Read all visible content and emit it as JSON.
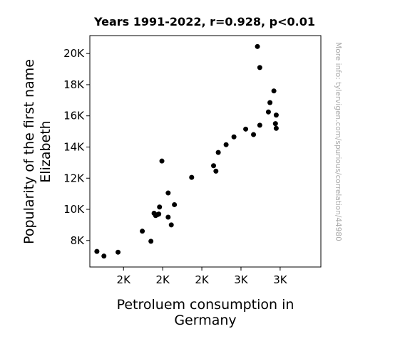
{
  "chart_data": {
    "type": "scatter",
    "title": "Years 1991-2022, r=0.928, p<0.01",
    "xlabel": [
      "Petroluem consumption in",
      "Germany"
    ],
    "ylabel": [
      "Popularity of the first name",
      "Elizabeth"
    ],
    "watermark": "More info: tylervigen.com/spurious/correlation/44980",
    "xlim": [
      1785,
      3260
    ],
    "ylim": [
      6300,
      21150
    ],
    "xticks": [
      {
        "value": 2000,
        "label": "2K"
      },
      {
        "value": 2250,
        "label": "2K"
      },
      {
        "value": 2500,
        "label": "2K"
      },
      {
        "value": 2750,
        "label": "3K"
      },
      {
        "value": 3000,
        "label": "3K"
      }
    ],
    "yticks": [
      {
        "value": 8000,
        "label": "8K"
      },
      {
        "value": 10000,
        "label": "10K"
      },
      {
        "value": 12000,
        "label": "12K"
      },
      {
        "value": 14000,
        "label": "14K"
      },
      {
        "value": 16000,
        "label": "16K"
      },
      {
        "value": 18000,
        "label": "18K"
      },
      {
        "value": 20000,
        "label": "20K"
      }
    ],
    "grid": false,
    "marker_color": "#000000",
    "points": [
      {
        "x": 1830,
        "y": 7300
      },
      {
        "x": 1875,
        "y": 7000
      },
      {
        "x": 1965,
        "y": 7250
      },
      {
        "x": 2120,
        "y": 8600
      },
      {
        "x": 2175,
        "y": 7950
      },
      {
        "x": 2195,
        "y": 9750
      },
      {
        "x": 2205,
        "y": 9600
      },
      {
        "x": 2215,
        "y": 9650
      },
      {
        "x": 2225,
        "y": 9700
      },
      {
        "x": 2230,
        "y": 10150
      },
      {
        "x": 2245,
        "y": 13100
      },
      {
        "x": 2285,
        "y": 11050
      },
      {
        "x": 2285,
        "y": 9500
      },
      {
        "x": 2305,
        "y": 9000
      },
      {
        "x": 2325,
        "y": 10300
      },
      {
        "x": 2435,
        "y": 12050
      },
      {
        "x": 2575,
        "y": 12800
      },
      {
        "x": 2590,
        "y": 12450
      },
      {
        "x": 2605,
        "y": 13650
      },
      {
        "x": 2655,
        "y": 14150
      },
      {
        "x": 2705,
        "y": 14650
      },
      {
        "x": 2780,
        "y": 15150
      },
      {
        "x": 2830,
        "y": 14800
      },
      {
        "x": 2855,
        "y": 20450
      },
      {
        "x": 2870,
        "y": 15400
      },
      {
        "x": 2870,
        "y": 19100
      },
      {
        "x": 2925,
        "y": 16250
      },
      {
        "x": 2935,
        "y": 16850
      },
      {
        "x": 2960,
        "y": 17600
      },
      {
        "x": 2970,
        "y": 15500
      },
      {
        "x": 2975,
        "y": 16050
      },
      {
        "x": 2975,
        "y": 15200
      }
    ]
  }
}
